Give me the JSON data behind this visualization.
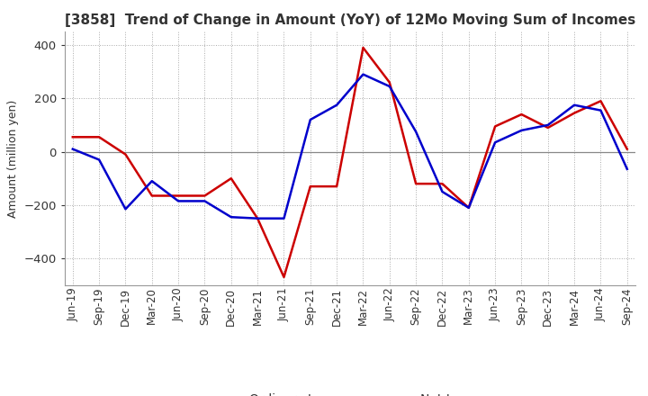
{
  "title": "[3858]  Trend of Change in Amount (YoY) of 12Mo Moving Sum of Incomes",
  "ylabel": "Amount (million yen)",
  "ylim": [
    -500,
    450
  ],
  "yticks": [
    -400,
    -200,
    0,
    200,
    400
  ],
  "background_color": "#ffffff",
  "grid_color": "#aaaaaa",
  "ordinary_income_color": "#0000cc",
  "net_income_color": "#cc0000",
  "dates": [
    "Jun-19",
    "Sep-19",
    "Dec-19",
    "Mar-20",
    "Jun-20",
    "Sep-20",
    "Dec-20",
    "Mar-21",
    "Jun-21",
    "Sep-21",
    "Dec-21",
    "Mar-22",
    "Jun-22",
    "Sep-22",
    "Dec-22",
    "Mar-23",
    "Jun-23",
    "Sep-23",
    "Dec-23",
    "Mar-24",
    "Jun-24",
    "Sep-24"
  ],
  "ordinary_income": [
    10,
    -30,
    -215,
    -110,
    -185,
    -185,
    -245,
    -250,
    -250,
    120,
    175,
    290,
    245,
    75,
    -150,
    -210,
    35,
    80,
    100,
    175,
    155,
    -65
  ],
  "net_income": [
    55,
    55,
    -10,
    -165,
    -165,
    -165,
    -100,
    -250,
    -470,
    -130,
    -130,
    390,
    260,
    -120,
    -120,
    -210,
    95,
    140,
    90,
    145,
    190,
    10
  ]
}
